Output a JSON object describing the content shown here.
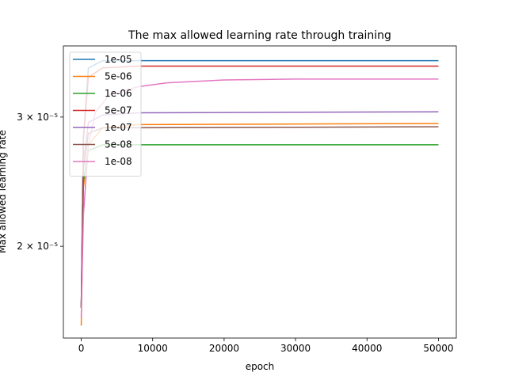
{
  "chart_data": {
    "type": "line",
    "title": "The max allowed learning rate through training",
    "xlabel": "epoch",
    "ylabel": "Max allowed learning rate",
    "yscale": "log",
    "xlim": [
      -2500,
      52500
    ],
    "ylim": [
      1.5e-05,
      3.75e-05
    ],
    "x_ticks": [
      0,
      10000,
      20000,
      30000,
      40000,
      50000
    ],
    "x_tick_labels": [
      "0",
      "10000",
      "20000",
      "30000",
      "40000",
      "50000"
    ],
    "y_ticks": [
      2e-05,
      3e-05
    ],
    "y_tick_labels": [
      "2 × 10⁻⁵",
      "3 × 10⁻⁵"
    ],
    "legend_position": "top-left",
    "grid": false,
    "series": [
      {
        "name": "1e-05",
        "color": "#1f77b4",
        "points": [
          [
            0,
            1.65e-05
          ],
          [
            300,
            2.8e-05
          ],
          [
            1000,
            3.5e-05
          ],
          [
            3000,
            3.58e-05
          ],
          [
            8000,
            3.58e-05
          ],
          [
            50000,
            3.58e-05
          ]
        ]
      },
      {
        "name": "5e-06",
        "color": "#ff7f0e",
        "points": [
          [
            0,
            1.56e-05
          ],
          [
            300,
            2.4e-05
          ],
          [
            1000,
            2.75e-05
          ],
          [
            3000,
            2.9e-05
          ],
          [
            8000,
            2.93e-05
          ],
          [
            50000,
            2.94e-05
          ]
        ]
      },
      {
        "name": "1e-06",
        "color": "#2ca02c",
        "points": [
          [
            0,
            1.65e-05
          ],
          [
            300,
            2.45e-05
          ],
          [
            1000,
            2.7e-05
          ],
          [
            3000,
            2.75e-05
          ],
          [
            50000,
            2.75e-05
          ]
        ]
      },
      {
        "name": "5e-07",
        "color": "#d62728",
        "points": [
          [
            0,
            1.65e-05
          ],
          [
            300,
            2.8e-05
          ],
          [
            1000,
            3.4e-05
          ],
          [
            3000,
            3.5e-05
          ],
          [
            8000,
            3.52e-05
          ],
          [
            50000,
            3.52e-05
          ]
        ]
      },
      {
        "name": "1e-07",
        "color": "#9467bd",
        "points": [
          [
            0,
            1.65e-05
          ],
          [
            300,
            2.6e-05
          ],
          [
            1000,
            2.95e-05
          ],
          [
            3000,
            3.02e-05
          ],
          [
            8000,
            3.04e-05
          ],
          [
            50000,
            3.05e-05
          ]
        ]
      },
      {
        "name": "5e-08",
        "color": "#8c564b",
        "points": [
          [
            0,
            1.65e-05
          ],
          [
            300,
            2.55e-05
          ],
          [
            1000,
            2.85e-05
          ],
          [
            3000,
            2.9e-05
          ],
          [
            50000,
            2.91e-05
          ]
        ]
      },
      {
        "name": "1e-08",
        "color": "#e377c2",
        "points": [
          [
            0,
            1.6e-05
          ],
          [
            300,
            2.2e-05
          ],
          [
            1000,
            2.75e-05
          ],
          [
            2000,
            3.05e-05
          ],
          [
            4000,
            3.22e-05
          ],
          [
            8000,
            3.3e-05
          ],
          [
            12000,
            3.34e-05
          ],
          [
            20000,
            3.37e-05
          ],
          [
            30000,
            3.38e-05
          ],
          [
            50000,
            3.38e-05
          ]
        ]
      }
    ]
  }
}
